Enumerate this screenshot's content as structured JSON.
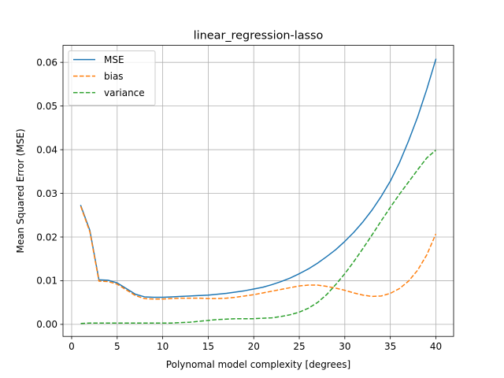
{
  "chart_data": {
    "type": "line",
    "title": "linear_regression-lasso",
    "xlabel": "Polynomal model complexity [degrees]",
    "ylabel": "Mean Squared Error (MSE)",
    "xlim": [
      -0.95,
      41.95
    ],
    "ylim": [
      -0.00276,
      0.06389
    ],
    "xticks": [
      0,
      5,
      10,
      15,
      20,
      25,
      30,
      35,
      40
    ],
    "yticks": [
      0.0,
      0.01,
      0.02,
      0.03,
      0.04,
      0.05,
      0.06
    ],
    "xtick_labels": [
      "0",
      "5",
      "10",
      "15",
      "20",
      "25",
      "30",
      "35",
      "40"
    ],
    "ytick_labels": [
      "0.00",
      "0.01",
      "0.02",
      "0.03",
      "0.04",
      "0.05",
      "0.06"
    ],
    "grid": true,
    "legend_position": "upper left",
    "x": [
      1,
      2,
      3,
      4,
      5,
      6,
      7,
      8,
      9,
      10,
      11,
      12,
      13,
      14,
      15,
      16,
      17,
      18,
      19,
      20,
      21,
      22,
      23,
      24,
      25,
      26,
      27,
      28,
      29,
      30,
      31,
      32,
      33,
      34,
      35,
      36,
      37,
      38,
      39,
      40
    ],
    "series": [
      {
        "name": "MSE",
        "color": "#1f77b4",
        "style": "solid",
        "values": [
          0.0272,
          0.0215,
          0.0102,
          0.0101,
          0.0095,
          0.0082,
          0.0069,
          0.0063,
          0.0062,
          0.0062,
          0.0063,
          0.0064,
          0.0065,
          0.0066,
          0.0067,
          0.0069,
          0.0071,
          0.0074,
          0.0077,
          0.0081,
          0.0085,
          0.0091,
          0.0098,
          0.0106,
          0.0116,
          0.0127,
          0.014,
          0.0155,
          0.0171,
          0.019,
          0.0211,
          0.0235,
          0.0262,
          0.0293,
          0.0328,
          0.037,
          0.042,
          0.0475,
          0.0538,
          0.0607
        ]
      },
      {
        "name": "bias",
        "color": "#ff7f0e",
        "style": "dashed",
        "values": [
          0.027,
          0.0212,
          0.0099,
          0.0098,
          0.0092,
          0.0079,
          0.0066,
          0.0059,
          0.0058,
          0.0058,
          0.0059,
          0.006,
          0.006,
          0.006,
          0.0059,
          0.0059,
          0.006,
          0.0062,
          0.0065,
          0.0068,
          0.0072,
          0.0076,
          0.008,
          0.0084,
          0.0088,
          0.009,
          0.009,
          0.0087,
          0.0083,
          0.0078,
          0.0072,
          0.0067,
          0.0064,
          0.0065,
          0.0071,
          0.0082,
          0.0099,
          0.0124,
          0.0159,
          0.0207
        ]
      },
      {
        "name": "variance",
        "color": "#2ca02c",
        "style": "dashed",
        "values": [
          0.0002,
          0.0003,
          0.0003,
          0.0003,
          0.0003,
          0.0003,
          0.0003,
          0.0003,
          0.0003,
          0.0003,
          0.0003,
          0.0004,
          0.0005,
          0.0007,
          0.0009,
          0.0011,
          0.0012,
          0.0013,
          0.0013,
          0.0013,
          0.0014,
          0.0015,
          0.0018,
          0.0022,
          0.0028,
          0.0037,
          0.005,
          0.0068,
          0.0091,
          0.0116,
          0.0144,
          0.0174,
          0.0205,
          0.0237,
          0.0268,
          0.0298,
          0.0326,
          0.0354,
          0.0381,
          0.0399
        ]
      }
    ]
  }
}
